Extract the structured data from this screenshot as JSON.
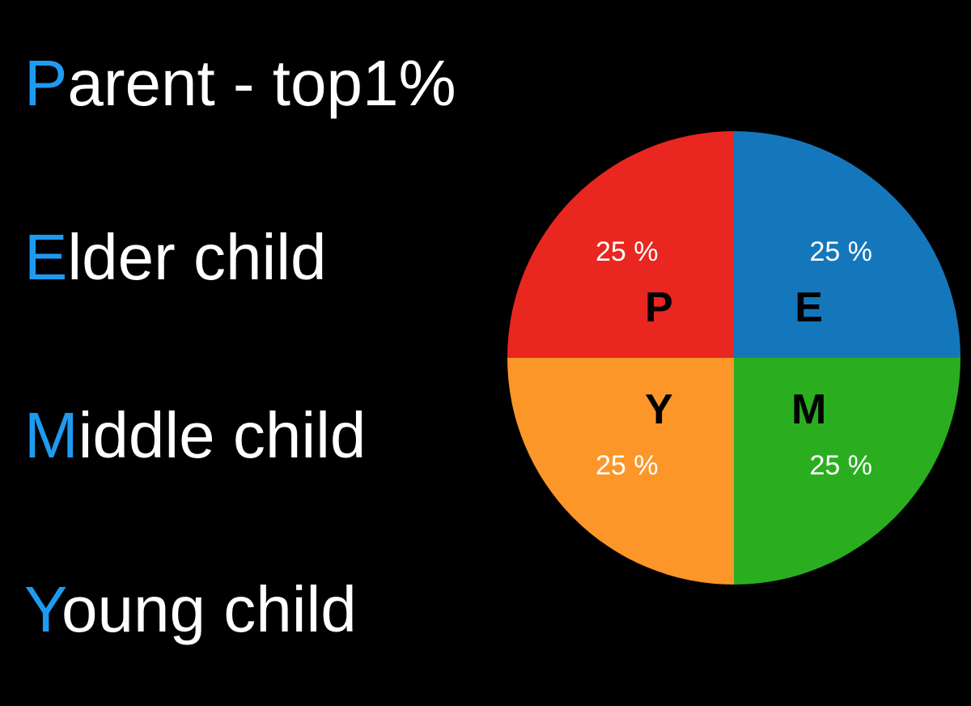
{
  "legend": [
    {
      "initial": "P",
      "rest": "arent - top1%"
    },
    {
      "initial": "E",
      "rest": "lder child"
    },
    {
      "initial": "M",
      "rest": "iddle child"
    },
    {
      "initial": "Y",
      "rest": "oung child"
    }
  ],
  "colors": {
    "background": "#000000",
    "legend_text": "#ffffff",
    "legend_initial": "#1e9bf0",
    "letter_text": "#000000",
    "percent_text": "#ffffff"
  },
  "chart_data": {
    "type": "pie",
    "start": "top, clockwise",
    "slices": [
      {
        "letter": "E",
        "value": 25,
        "label": "25 %",
        "color": "#1577bb"
      },
      {
        "letter": "M",
        "value": 25,
        "label": "25 %",
        "color": "#2aae20"
      },
      {
        "letter": "Y",
        "value": 25,
        "label": "25 %",
        "color": "#fc9629"
      },
      {
        "letter": "P",
        "value": 25,
        "label": "25 %",
        "color": "#e9261f"
      }
    ]
  }
}
